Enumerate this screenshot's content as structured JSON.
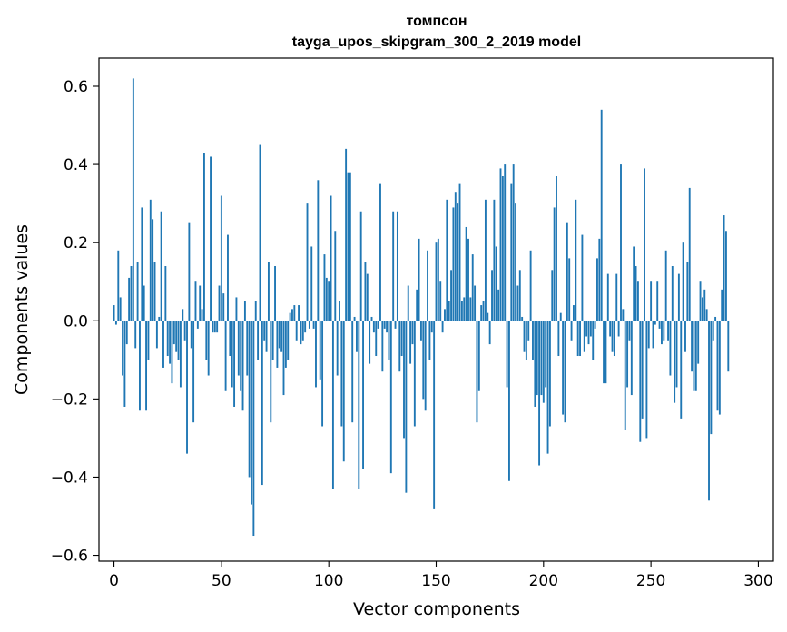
{
  "chart_data": {
    "type": "bar",
    "title": "томпсон",
    "subtitle": "tayga_upos_skipgram_300_2_2019 model",
    "xlabel": "Vector components",
    "ylabel": "Components values",
    "xlim": [
      -7,
      307
    ],
    "ylim": [
      -0.615,
      0.672
    ],
    "xticks": [
      0,
      50,
      100,
      150,
      200,
      250,
      300
    ],
    "yticks": [
      -0.6,
      -0.4,
      -0.2,
      0.0,
      0.2,
      0.4,
      0.6
    ],
    "ytick_labels": [
      "−0.6",
      "−0.4",
      "−0.2",
      "0.0",
      "0.2",
      "0.4",
      "0.6"
    ],
    "grid": false,
    "bar_color": "#1f77b4",
    "values": [
      0.04,
      -0.01,
      0.18,
      0.06,
      -0.14,
      -0.22,
      -0.06,
      0.11,
      0.14,
      0.62,
      -0.07,
      0.15,
      -0.23,
      0.29,
      0.09,
      -0.23,
      -0.1,
      0.31,
      0.26,
      0.15,
      -0.07,
      0.01,
      0.28,
      -0.12,
      0.14,
      -0.09,
      -0.11,
      -0.16,
      -0.06,
      -0.08,
      -0.1,
      -0.17,
      0.03,
      -0.05,
      -0.34,
      0.25,
      -0.07,
      -0.26,
      0.1,
      -0.02,
      0.09,
      0.03,
      0.43,
      -0.1,
      -0.14,
      0.42,
      -0.03,
      -0.03,
      -0.03,
      0.09,
      0.32,
      0.07,
      -0.18,
      0.22,
      -0.09,
      -0.17,
      -0.22,
      0.06,
      -0.14,
      -0.18,
      -0.23,
      0.05,
      -0.14,
      -0.4,
      -0.47,
      -0.55,
      0.05,
      -0.1,
      0.45,
      -0.42,
      -0.05,
      -0.08,
      0.15,
      -0.26,
      -0.1,
      0.14,
      -0.12,
      -0.07,
      -0.08,
      -0.19,
      -0.12,
      -0.1,
      0.02,
      0.03,
      0.04,
      -0.05,
      0.04,
      -0.06,
      -0.05,
      -0.03,
      0.3,
      -0.02,
      0.19,
      -0.02,
      -0.17,
      0.36,
      -0.15,
      -0.27,
      0.17,
      0.11,
      0.1,
      0.32,
      -0.43,
      0.23,
      -0.14,
      0.05,
      -0.27,
      -0.36,
      0.44,
      0.38,
      0.38,
      -0.26,
      0.01,
      -0.08,
      -0.43,
      0.28,
      -0.38,
      0.15,
      0.12,
      -0.11,
      0.01,
      -0.03,
      -0.09,
      -0.02,
      0.35,
      -0.13,
      -0.02,
      -0.03,
      -0.1,
      -0.39,
      0.28,
      -0.02,
      0.28,
      -0.13,
      -0.09,
      -0.3,
      -0.44,
      0.09,
      -0.11,
      -0.06,
      -0.27,
      0.08,
      0.21,
      -0.05,
      -0.2,
      -0.23,
      0.18,
      -0.1,
      -0.03,
      -0.48,
      0.2,
      0.21,
      0.1,
      -0.03,
      0.03,
      0.31,
      0.05,
      0.13,
      0.29,
      0.33,
      0.3,
      0.35,
      0.05,
      0.06,
      0.24,
      0.21,
      0.06,
      0.17,
      0.09,
      -0.26,
      -0.18,
      0.04,
      0.05,
      0.31,
      0.02,
      -0.06,
      0.13,
      0.31,
      0.19,
      0.08,
      0.39,
      0.37,
      0.4,
      -0.17,
      -0.41,
      0.35,
      0.4,
      0.3,
      0.09,
      0.13,
      0.01,
      -0.08,
      -0.1,
      -0.05,
      0.18,
      -0.1,
      -0.22,
      -0.19,
      -0.37,
      -0.19,
      -0.21,
      -0.17,
      -0.34,
      -0.27,
      0.13,
      0.29,
      0.37,
      -0.09,
      0.02,
      -0.24,
      -0.26,
      0.25,
      0.16,
      -0.05,
      0.04,
      0.31,
      -0.09,
      -0.09,
      0.22,
      -0.08,
      -0.04,
      -0.06,
      -0.04,
      -0.1,
      -0.02,
      0.16,
      0.21,
      0.54,
      -0.16,
      -0.16,
      0.12,
      -0.04,
      -0.08,
      -0.09,
      0.12,
      -0.04,
      0.4,
      0.03,
      -0.28,
      -0.17,
      -0.05,
      -0.19,
      0.19,
      0.14,
      0.1,
      -0.31,
      -0.25,
      0.39,
      -0.3,
      -0.07,
      0.1,
      -0.07,
      -0.01,
      0.1,
      -0.02,
      -0.06,
      -0.05,
      0.18,
      -0.05,
      -0.14,
      0.14,
      -0.21,
      -0.17,
      0.12,
      -0.25,
      0.2,
      -0.08,
      0.15,
      0.34,
      -0.13,
      -0.18,
      -0.18,
      -0.11,
      0.1,
      0.06,
      0.08,
      0.03,
      -0.46,
      -0.29,
      -0.05,
      0.01,
      -0.23,
      -0.24,
      0.08,
      0.27,
      0.23,
      -0.13
    ]
  }
}
